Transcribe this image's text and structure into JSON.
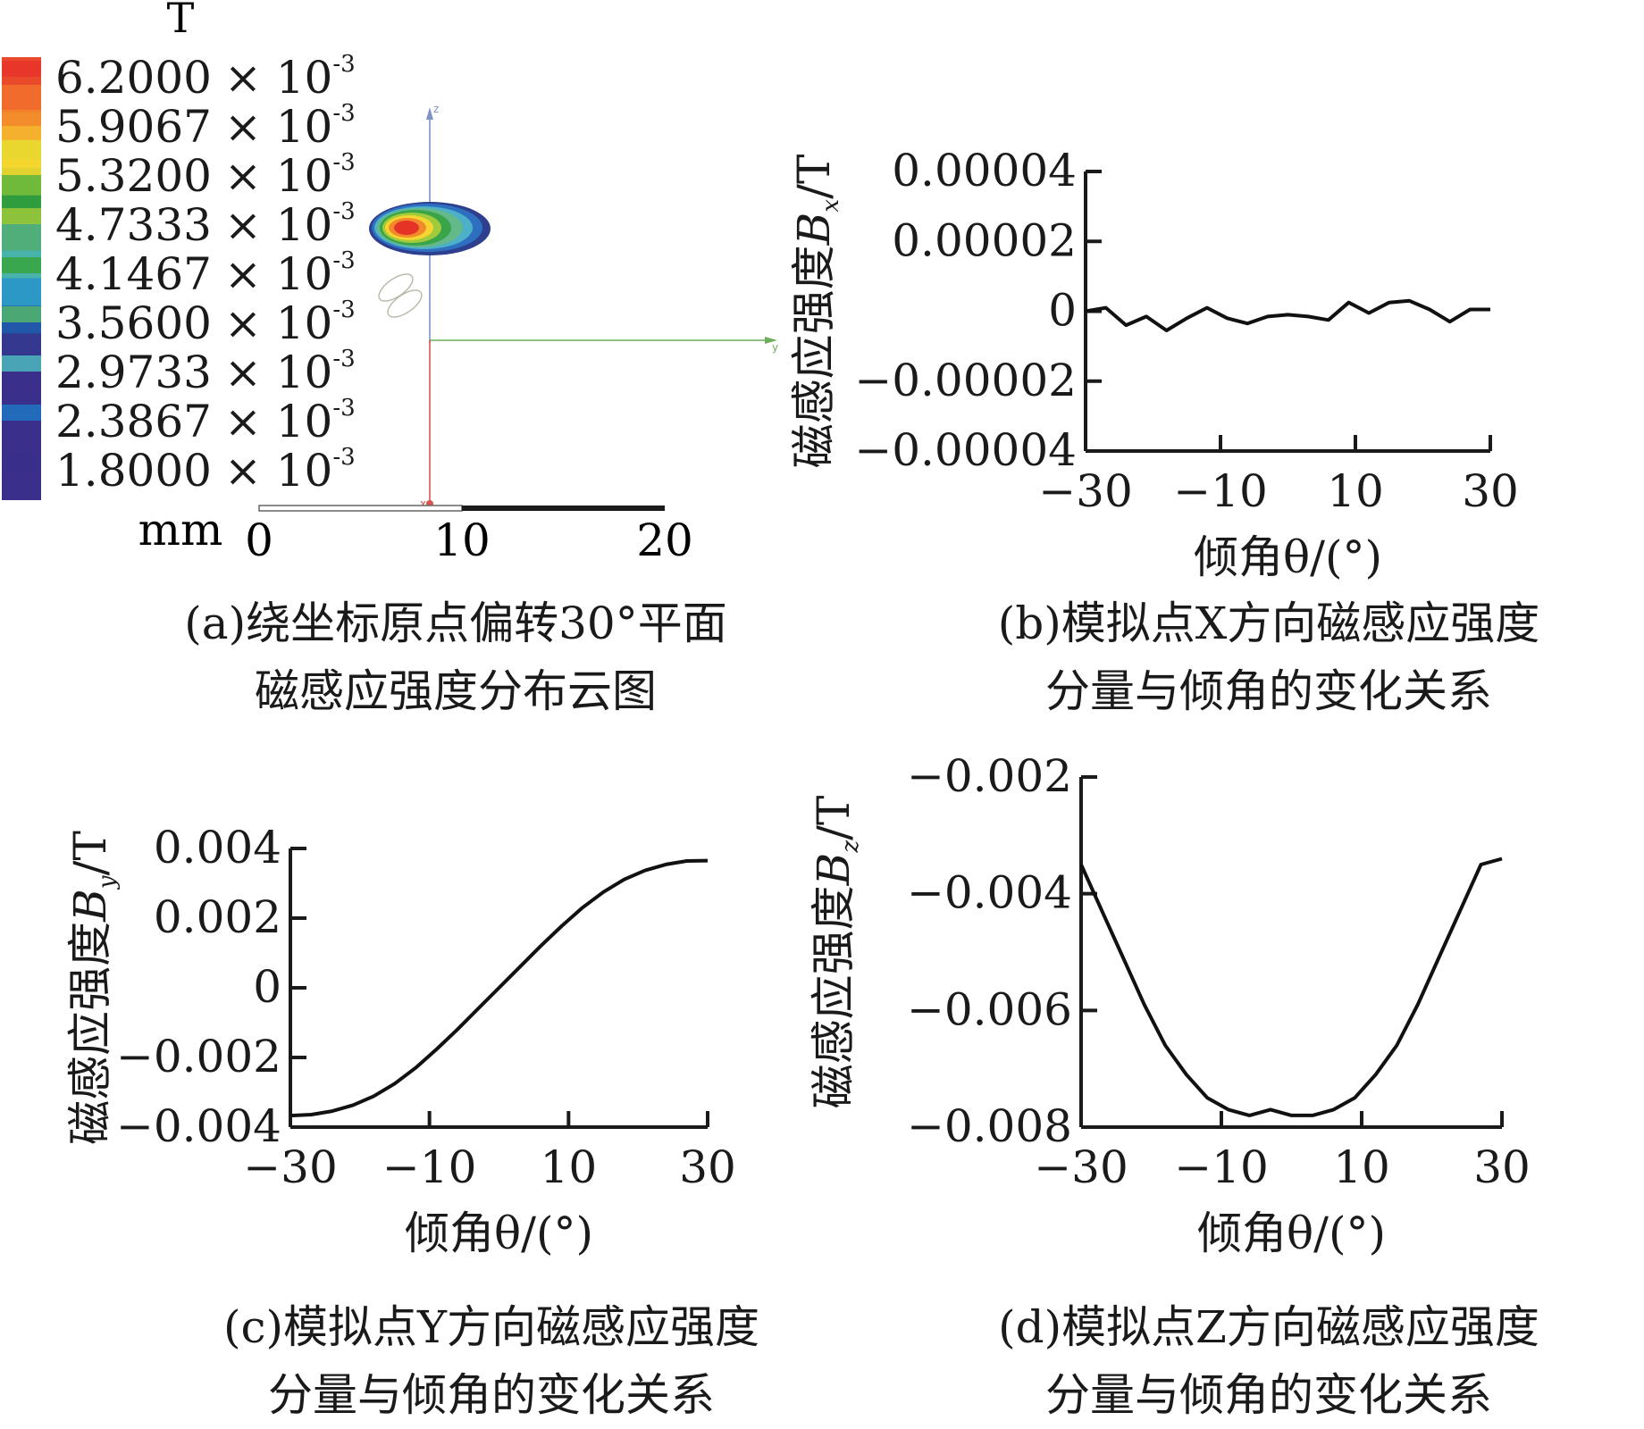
{
  "panel_a": {
    "unit": "T",
    "scale_unit": "mm",
    "scale_ticks": [
      "0",
      "10",
      "20"
    ],
    "axis_labels": [
      "z",
      "y",
      "x"
    ],
    "legend": [
      {
        "mantissa": "6.2000",
        "exp": "-3",
        "color": "#e8322a"
      },
      {
        "mantissa": "5.9067",
        "exp": "-3",
        "color": "#f2862a"
      },
      {
        "mantissa": "5.3200",
        "exp": "-3",
        "color": "#f7d62e"
      },
      {
        "mantissa": "4.7333",
        "exp": "-3",
        "color": "#9ec93b"
      },
      {
        "mantissa": "4.1467",
        "exp": "-3",
        "color": "#37a43c"
      },
      {
        "mantissa": "3.5600",
        "exp": "-3",
        "color": "#52b56a"
      },
      {
        "mantissa": "2.9733",
        "exp": "-3",
        "color": "#4cb8bd"
      },
      {
        "mantissa": "2.3867",
        "exp": "-3",
        "color": "#1f74c2"
      },
      {
        "mantissa": "1.8000",
        "exp": "-3",
        "color": "#3a2f8a"
      }
    ],
    "caption_line1": "(a)绕坐标原点偏转30°平面",
    "caption_line2": "磁感应强度分布云图"
  },
  "captions": {
    "b_line1": "(b)模拟点X方向磁感应强度",
    "b_line2": "分量与倾角的变化关系",
    "c_line1": "(c)模拟点Y方向磁感应强度",
    "c_line2": "分量与倾角的变化关系",
    "d_line1": "(d)模拟点Z方向磁感应强度",
    "d_line2": "分量与倾角的变化关系"
  },
  "chart_data": [
    {
      "id": "b",
      "type": "line",
      "ylabel_prefix": "磁感应强度",
      "ylabel_var": "B",
      "ylabel_sub": "x",
      "ylabel_unit": "/T",
      "xlabel": "倾角θ/(°)",
      "xlim": [
        -30,
        30
      ],
      "ylim": [
        -4e-05,
        4e-05
      ],
      "xticks": [
        -30,
        -10,
        10,
        30
      ],
      "xtick_labels": [
        "−30",
        "−10",
        "10",
        "30"
      ],
      "yticks": [
        4e-05,
        2e-05,
        0,
        -2e-05,
        -4e-05
      ],
      "ytick_labels": [
        "0.00004",
        "0.00002",
        "0",
        "−0.00002",
        "−0.00004"
      ],
      "x": [
        -30,
        -27,
        -24,
        -21,
        -18,
        -15,
        -12,
        -9,
        -6,
        -3,
        0,
        3,
        6,
        9,
        12,
        15,
        18,
        21,
        24,
        27,
        30
      ],
      "y": [
        0,
        1e-06,
        -4e-06,
        -1.5e-06,
        -5.5e-06,
        -2e-06,
        1e-06,
        -2e-06,
        -3.5e-06,
        -1.5e-06,
        -1e-06,
        -1.5e-06,
        -2.5e-06,
        2.5e-06,
        -5e-07,
        2.5e-06,
        3e-06,
        5e-07,
        -3e-06,
        5e-07,
        5e-07
      ]
    },
    {
      "id": "c",
      "type": "line",
      "ylabel_prefix": "磁感应强度",
      "ylabel_var": "B",
      "ylabel_sub": "y",
      "ylabel_unit": "/T",
      "xlabel": "倾角θ/(°)",
      "xlim": [
        -30,
        30
      ],
      "ylim": [
        -0.004,
        0.004
      ],
      "xticks": [
        -30,
        -10,
        10,
        30
      ],
      "xtick_labels": [
        "−30",
        "−10",
        "10",
        "30"
      ],
      "yticks": [
        0.004,
        0.002,
        0,
        -0.002,
        -0.004
      ],
      "ytick_labels": [
        "0.004",
        "0.002",
        "0",
        "−0.002",
        "−0.004"
      ],
      "x": [
        -30,
        -27,
        -24,
        -21,
        -18,
        -15,
        -12,
        -9,
        -6,
        -3,
        0,
        3,
        6,
        9,
        12,
        15,
        18,
        21,
        24,
        27,
        30
      ],
      "y": [
        -0.00367,
        -0.00364,
        -0.00354,
        -0.00337,
        -0.00311,
        -0.00275,
        -0.0023,
        -0.00177,
        -0.0012,
        -0.0006,
        0,
        0.0006,
        0.0012,
        0.00177,
        0.0023,
        0.00275,
        0.00311,
        0.00337,
        0.00354,
        0.00364,
        0.00365
      ]
    },
    {
      "id": "d",
      "type": "line",
      "ylabel_prefix": "磁感应强度",
      "ylabel_var": "B",
      "ylabel_sub": "z",
      "ylabel_unit": "/T",
      "xlabel": "倾角θ/(°)",
      "xlim": [
        -30,
        30
      ],
      "ylim": [
        -0.008,
        -0.002
      ],
      "xticks": [
        -30,
        -10,
        10,
        30
      ],
      "xtick_labels": [
        "−30",
        "−10",
        "10",
        "30"
      ],
      "yticks": [
        -0.002,
        -0.004,
        -0.006,
        -0.008
      ],
      "ytick_labels": [
        "−0.002",
        "−0.004",
        "−0.006",
        "−0.008"
      ],
      "x": [
        -30,
        -27,
        -24,
        -21,
        -18,
        -15,
        -12,
        -9,
        -6,
        -3,
        0,
        3,
        6,
        9,
        12,
        15,
        18,
        21,
        24,
        27,
        30
      ],
      "y": [
        -0.0035,
        -0.0043,
        -0.0051,
        -0.0059,
        -0.0066,
        -0.0071,
        -0.0075,
        -0.0077,
        -0.0078,
        -0.0077,
        -0.0078,
        -0.0078,
        -0.0077,
        -0.0075,
        -0.0071,
        -0.0066,
        -0.0059,
        -0.0051,
        -0.0043,
        -0.0035,
        -0.0034
      ]
    }
  ]
}
